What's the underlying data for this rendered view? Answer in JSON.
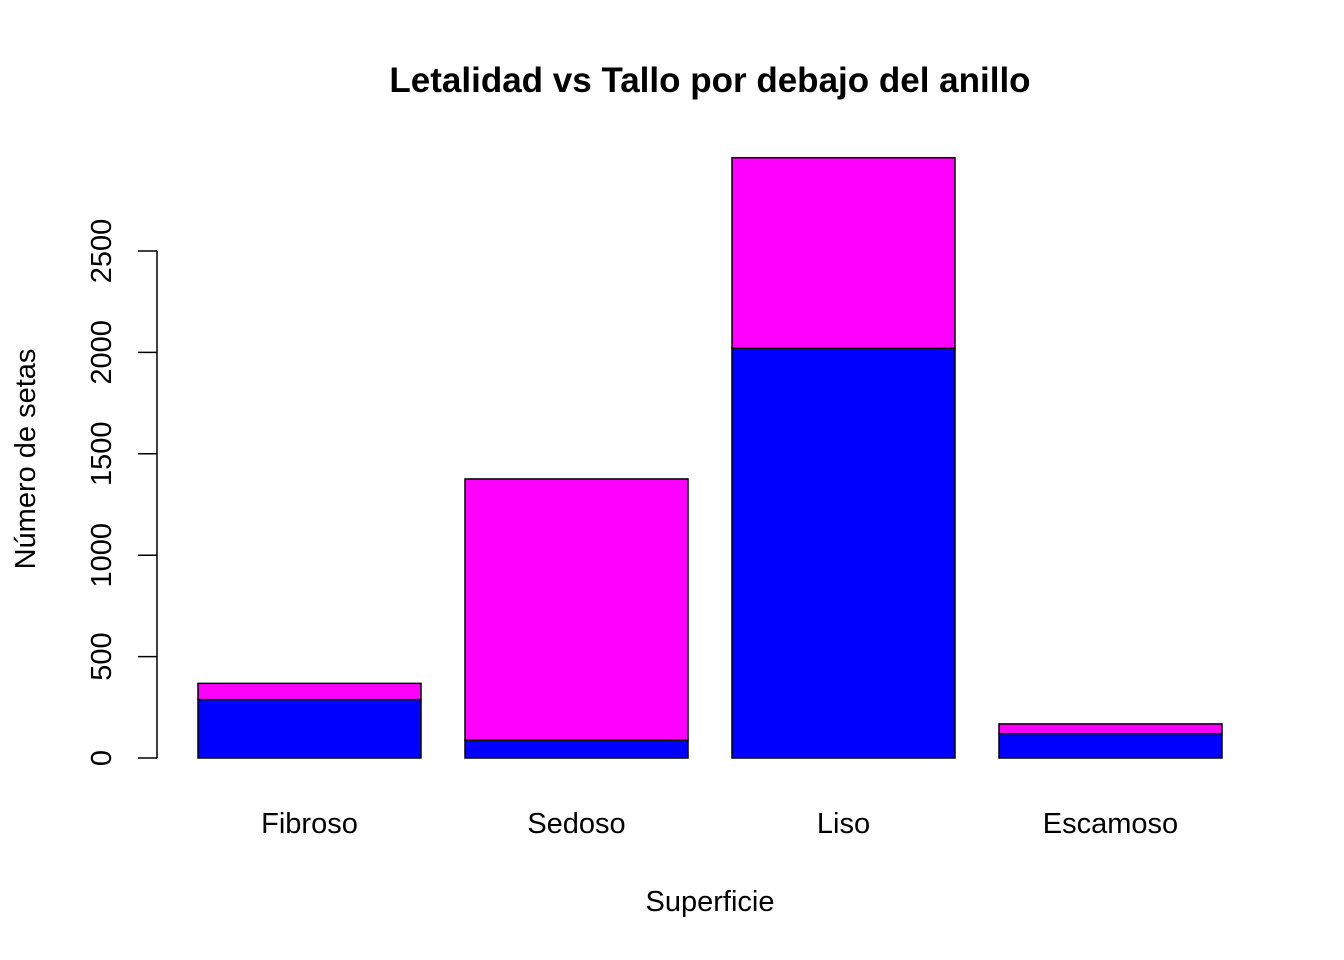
{
  "chart_data": {
    "type": "bar",
    "stacked": true,
    "title": "Letalidad vs Tallo por debajo del anillo",
    "xlabel": "Superficie",
    "ylabel": "Número de setas",
    "categories": [
      "Fibroso",
      "Sedoso",
      "Liso",
      "Escamoso"
    ],
    "series": [
      {
        "color": "#0000ff",
        "values": [
          288,
          88,
          2020,
          120
        ]
      },
      {
        "color": "#ff00ff",
        "values": [
          80,
          1288,
          940,
          48
        ]
      }
    ],
    "yticks": [
      0,
      500,
      1000,
      1500,
      2000,
      2500
    ],
    "ytick_labels": [
      "0",
      "500",
      "1000",
      "1500",
      "2000",
      "2500"
    ],
    "ylim": [
      0,
      2960
    ],
    "grid": false,
    "legend": "none"
  }
}
